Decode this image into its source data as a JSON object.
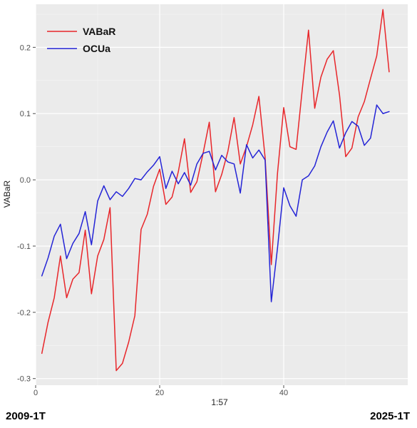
{
  "chart_data": {
    "type": "line",
    "xlabel": "1:57",
    "ylabel": "VABaR",
    "xlim": [
      0,
      60
    ],
    "ylim": [
      -0.31,
      0.265
    ],
    "x_ticks": [
      0,
      20,
      40
    ],
    "y_ticks": [
      -0.3,
      -0.2,
      -0.1,
      0.0,
      0.1,
      0.2
    ],
    "y_tick_labels": [
      "-0.3",
      "-0.2",
      "-0.1",
      "0.0",
      "0.1",
      "0.2"
    ],
    "grid": true,
    "legend_position": "top-left",
    "x": [
      1,
      2,
      3,
      4,
      5,
      6,
      7,
      8,
      9,
      10,
      11,
      12,
      13,
      14,
      15,
      16,
      17,
      18,
      19,
      20,
      21,
      22,
      23,
      24,
      25,
      26,
      27,
      28,
      29,
      30,
      31,
      32,
      33,
      34,
      35,
      36,
      37,
      38,
      39,
      40,
      41,
      42,
      43,
      44,
      45,
      46,
      47,
      48,
      49,
      50,
      51,
      52,
      53,
      54,
      55,
      56,
      57
    ],
    "series": [
      {
        "name": "VABaR",
        "color": "#e8262a",
        "values": [
          -0.262,
          -0.215,
          -0.178,
          -0.115,
          -0.178,
          -0.15,
          -0.14,
          -0.076,
          -0.172,
          -0.115,
          -0.09,
          -0.042,
          -0.288,
          -0.277,
          -0.245,
          -0.205,
          -0.075,
          -0.052,
          -0.01,
          0.016,
          -0.037,
          -0.026,
          0.012,
          0.062,
          -0.019,
          -0.003,
          0.04,
          0.087,
          -0.018,
          0.008,
          0.043,
          0.094,
          0.024,
          0.05,
          0.083,
          0.126,
          0.034,
          -0.128,
          0.01,
          0.109,
          0.05,
          0.046,
          0.137,
          0.226,
          0.108,
          0.155,
          0.182,
          0.195,
          0.128,
          0.035,
          0.048,
          0.095,
          0.118,
          0.153,
          0.187,
          0.257,
          0.163
        ]
      },
      {
        "name": "OCUa",
        "color": "#2424d6",
        "values": [
          -0.145,
          -0.118,
          -0.085,
          -0.067,
          -0.119,
          -0.096,
          -0.081,
          -0.048,
          -0.098,
          -0.032,
          -0.009,
          -0.03,
          -0.018,
          -0.025,
          -0.013,
          0.002,
          0.0,
          0.012,
          0.022,
          0.035,
          -0.013,
          0.013,
          -0.006,
          0.011,
          -0.008,
          0.024,
          0.04,
          0.043,
          0.015,
          0.037,
          0.027,
          0.024,
          -0.02,
          0.053,
          0.033,
          0.045,
          0.03,
          -0.184,
          -0.103,
          -0.012,
          -0.039,
          -0.055,
          0.0,
          0.006,
          0.021,
          0.05,
          0.072,
          0.089,
          0.048,
          0.071,
          0.088,
          0.081,
          0.052,
          0.063,
          0.113,
          0.1,
          0.103
        ]
      }
    ]
  },
  "footer": {
    "left_label": "2009-1T",
    "right_label": "2025-1T"
  }
}
